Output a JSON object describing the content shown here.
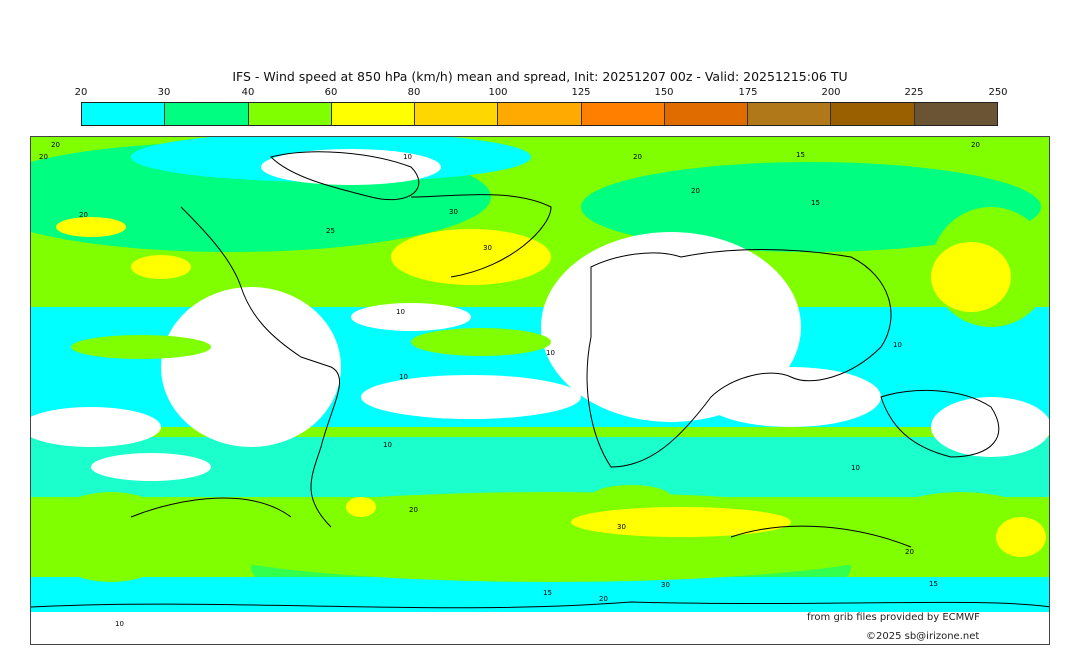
{
  "title": "IFS - Wind speed at 850 hPa (km/h) mean and spread, Init: 20251207 00z - Valid: 20251215:06 TU",
  "colorbar": {
    "ticks": [
      "20",
      "30",
      "40",
      "60",
      "80",
      "100",
      "125",
      "150",
      "175",
      "200",
      "225",
      "250"
    ],
    "colors": [
      "#00ffff",
      "#00ff80",
      "#80ff00",
      "#ffff00",
      "#ffd700",
      "#ffaa00",
      "#ff8000",
      "#e06c00",
      "#b07818",
      "#9a6000",
      "#6a5434"
    ]
  },
  "map": {
    "contour_labels": [
      "20",
      "20",
      "20",
      "20",
      "20",
      "10",
      "15",
      "15",
      "20",
      "25",
      "30",
      "30",
      "10",
      "10",
      "10",
      "10",
      "10",
      "10",
      "20",
      "20",
      "30",
      "30",
      "15",
      "15",
      "20",
      "10"
    ]
  },
  "credits": {
    "source": "from grib files provided by ECMWF",
    "copyright": "©2025 sb@irizone.net"
  }
}
